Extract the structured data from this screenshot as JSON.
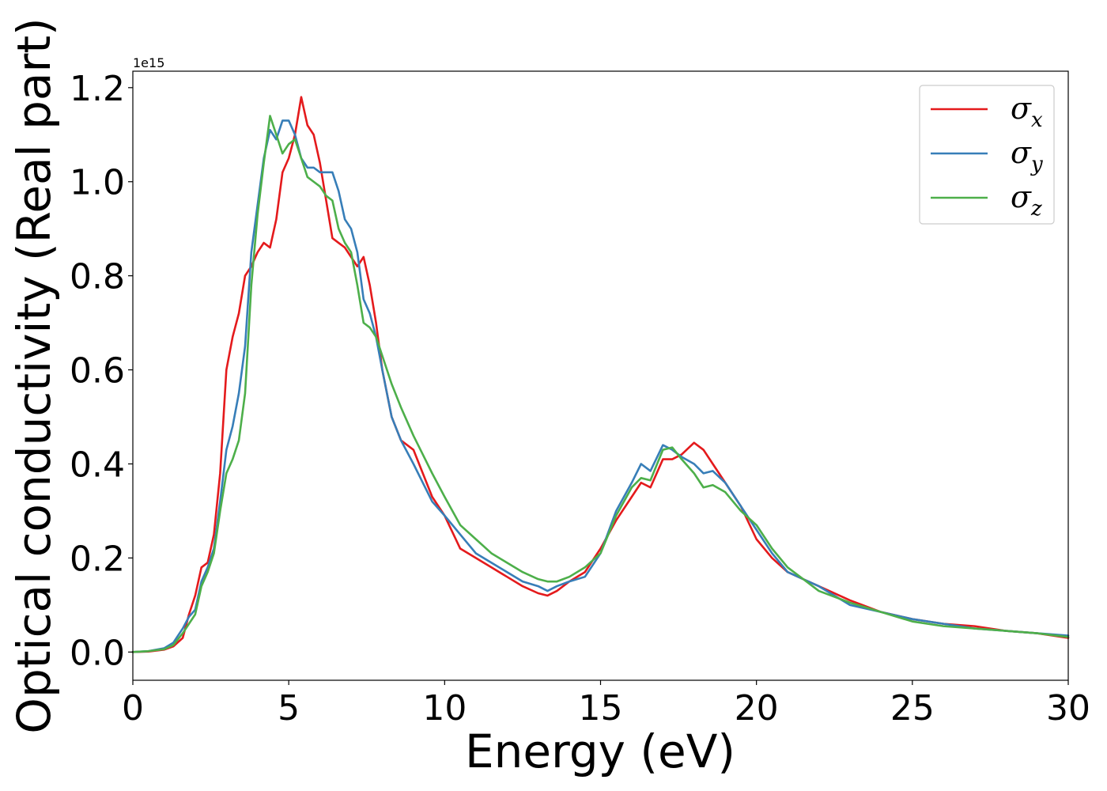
{
  "chart_data": {
    "type": "line",
    "xlabel": "Energy (eV)",
    "ylabel": "Optical conductivity (Real part)",
    "y_offset_text": "1e15",
    "y_scale_factor": 1000000000000000.0,
    "xlim": [
      0,
      30
    ],
    "ylim": [
      -0.06,
      1.235
    ],
    "x_ticks": [
      0,
      5,
      10,
      15,
      20,
      25,
      30
    ],
    "x_tick_labels": [
      "0",
      "5",
      "10",
      "15",
      "20",
      "25",
      "30"
    ],
    "y_ticks": [
      0.0,
      0.2,
      0.4,
      0.6,
      0.8,
      1.0,
      1.2
    ],
    "y_tick_labels": [
      "0.0",
      "0.2",
      "0.4",
      "0.6",
      "0.8",
      "1.0",
      "1.2"
    ],
    "grid": false,
    "legend_position": "top-right",
    "series": [
      {
        "name": "σx",
        "legend_symbol": "σ",
        "legend_subscript": "x",
        "color": "#e41a1c",
        "x": [
          0,
          0.5,
          1.0,
          1.3,
          1.6,
          1.8,
          2.0,
          2.2,
          2.4,
          2.6,
          2.8,
          3.0,
          3.2,
          3.4,
          3.6,
          3.8,
          4.0,
          4.2,
          4.4,
          4.6,
          4.8,
          5.0,
          5.2,
          5.4,
          5.6,
          5.8,
          6.0,
          6.2,
          6.4,
          6.6,
          6.8,
          7.0,
          7.2,
          7.4,
          7.6,
          7.8,
          8.0,
          8.3,
          8.6,
          9.0,
          9.3,
          9.6,
          10.0,
          10.5,
          11.0,
          11.5,
          12.0,
          12.5,
          13.0,
          13.3,
          13.6,
          14.0,
          14.5,
          15.0,
          15.5,
          16.0,
          16.3,
          16.6,
          17.0,
          17.3,
          17.6,
          18.0,
          18.3,
          18.6,
          19.0,
          19.5,
          20.0,
          20.5,
          21.0,
          22.0,
          23.0,
          24.0,
          25.0,
          26.0,
          27.0,
          28.0,
          29.0,
          30.0
        ],
        "y": [
          0.0,
          0.001,
          0.005,
          0.012,
          0.03,
          0.08,
          0.12,
          0.18,
          0.19,
          0.25,
          0.38,
          0.6,
          0.67,
          0.72,
          0.8,
          0.82,
          0.85,
          0.87,
          0.86,
          0.92,
          1.02,
          1.05,
          1.1,
          1.18,
          1.12,
          1.1,
          1.04,
          0.96,
          0.88,
          0.87,
          0.86,
          0.84,
          0.82,
          0.84,
          0.78,
          0.7,
          0.6,
          0.5,
          0.45,
          0.43,
          0.38,
          0.33,
          0.29,
          0.22,
          0.2,
          0.18,
          0.16,
          0.14,
          0.125,
          0.12,
          0.13,
          0.15,
          0.17,
          0.22,
          0.28,
          0.33,
          0.36,
          0.35,
          0.41,
          0.41,
          0.42,
          0.445,
          0.43,
          0.4,
          0.36,
          0.31,
          0.24,
          0.2,
          0.17,
          0.14,
          0.11,
          0.085,
          0.07,
          0.06,
          0.055,
          0.045,
          0.04,
          0.03
        ]
      },
      {
        "name": "σy",
        "legend_symbol": "σ",
        "legend_subscript": "y",
        "color": "#377eb8",
        "x": [
          0,
          0.5,
          1.0,
          1.3,
          1.6,
          1.8,
          2.0,
          2.2,
          2.4,
          2.6,
          2.8,
          3.0,
          3.2,
          3.4,
          3.6,
          3.8,
          4.0,
          4.2,
          4.4,
          4.6,
          4.8,
          5.0,
          5.2,
          5.4,
          5.6,
          5.8,
          6.0,
          6.2,
          6.4,
          6.6,
          6.8,
          7.0,
          7.2,
          7.4,
          7.6,
          7.8,
          8.0,
          8.3,
          8.6,
          9.0,
          9.3,
          9.6,
          10.0,
          10.5,
          11.0,
          11.5,
          12.0,
          12.5,
          13.0,
          13.3,
          13.6,
          14.0,
          14.5,
          15.0,
          15.5,
          16.0,
          16.3,
          16.6,
          17.0,
          17.3,
          17.6,
          18.0,
          18.3,
          18.6,
          19.0,
          19.5,
          20.0,
          20.5,
          21.0,
          22.0,
          23.0,
          24.0,
          25.0,
          26.0,
          27.0,
          28.0,
          29.0,
          30.0
        ],
        "y": [
          0.0,
          0.002,
          0.008,
          0.02,
          0.05,
          0.075,
          0.09,
          0.15,
          0.18,
          0.22,
          0.32,
          0.43,
          0.48,
          0.55,
          0.65,
          0.85,
          0.95,
          1.05,
          1.11,
          1.09,
          1.13,
          1.13,
          1.1,
          1.05,
          1.03,
          1.03,
          1.02,
          1.02,
          1.02,
          0.98,
          0.92,
          0.9,
          0.85,
          0.75,
          0.72,
          0.67,
          0.6,
          0.5,
          0.45,
          0.4,
          0.36,
          0.32,
          0.29,
          0.25,
          0.21,
          0.19,
          0.17,
          0.15,
          0.14,
          0.13,
          0.14,
          0.15,
          0.16,
          0.21,
          0.3,
          0.36,
          0.4,
          0.385,
          0.44,
          0.43,
          0.415,
          0.4,
          0.38,
          0.385,
          0.36,
          0.31,
          0.26,
          0.21,
          0.17,
          0.14,
          0.1,
          0.085,
          0.07,
          0.06,
          0.05,
          0.045,
          0.04,
          0.035
        ]
      },
      {
        "name": "σz",
        "legend_symbol": "σ",
        "legend_subscript": "z",
        "color": "#4daf4a",
        "x": [
          0,
          0.5,
          1.0,
          1.3,
          1.6,
          1.8,
          2.0,
          2.2,
          2.4,
          2.6,
          2.8,
          3.0,
          3.2,
          3.4,
          3.6,
          3.8,
          4.0,
          4.2,
          4.4,
          4.6,
          4.8,
          5.0,
          5.2,
          5.4,
          5.6,
          5.8,
          6.0,
          6.2,
          6.4,
          6.6,
          6.8,
          7.0,
          7.2,
          7.4,
          7.6,
          7.8,
          8.0,
          8.3,
          8.6,
          9.0,
          9.3,
          9.6,
          10.0,
          10.5,
          11.0,
          11.5,
          12.0,
          12.5,
          13.0,
          13.3,
          13.6,
          14.0,
          14.5,
          15.0,
          15.5,
          16.0,
          16.3,
          16.6,
          17.0,
          17.3,
          17.6,
          18.0,
          18.3,
          18.6,
          19.0,
          19.5,
          20.0,
          20.5,
          21.0,
          22.0,
          23.0,
          24.0,
          25.0,
          26.0,
          27.0,
          28.0,
          29.0,
          30.0
        ],
        "y": [
          0.0,
          0.002,
          0.006,
          0.015,
          0.04,
          0.06,
          0.08,
          0.14,
          0.17,
          0.21,
          0.3,
          0.38,
          0.41,
          0.45,
          0.55,
          0.78,
          0.93,
          1.04,
          1.14,
          1.1,
          1.06,
          1.08,
          1.09,
          1.05,
          1.01,
          1.0,
          0.99,
          0.97,
          0.96,
          0.9,
          0.87,
          0.85,
          0.78,
          0.7,
          0.69,
          0.67,
          0.63,
          0.57,
          0.52,
          0.46,
          0.42,
          0.38,
          0.33,
          0.27,
          0.24,
          0.21,
          0.19,
          0.17,
          0.155,
          0.15,
          0.15,
          0.16,
          0.18,
          0.21,
          0.29,
          0.35,
          0.37,
          0.365,
          0.43,
          0.435,
          0.41,
          0.38,
          0.35,
          0.355,
          0.34,
          0.3,
          0.27,
          0.22,
          0.18,
          0.13,
          0.105,
          0.085,
          0.065,
          0.055,
          0.05,
          0.045,
          0.04,
          0.032
        ]
      }
    ]
  }
}
